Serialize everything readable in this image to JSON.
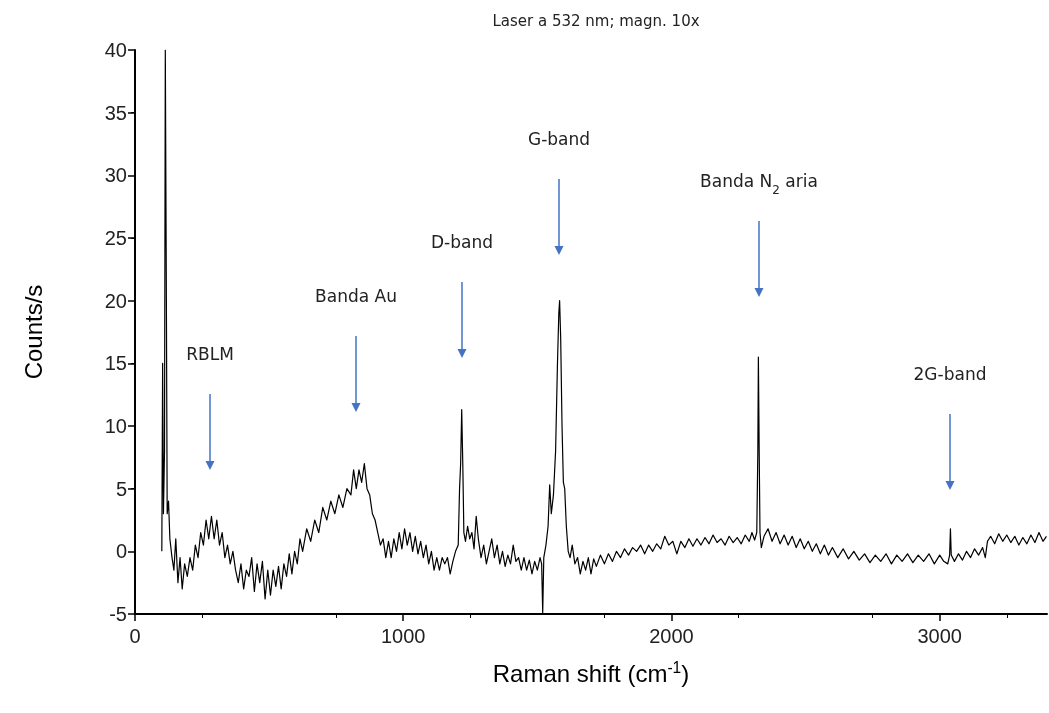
{
  "chart_data": {
    "type": "line",
    "title": "Laser a 532 nm; magn. 10x",
    "xlabel": "Raman shift (cm$^{-1}$)",
    "ylabel": "Counts/s",
    "annotations": [
      "RBLM",
      "Banda Au",
      "D-band",
      "G-band",
      "Banda N$_{2}$ aria",
      "2G-band"
    ],
    "x": [
      100,
      103,
      106,
      110,
      113,
      117,
      120,
      125,
      130,
      138,
      145,
      152,
      160,
      168,
      176,
      185,
      195,
      205,
      215,
      225,
      235,
      245,
      255,
      265,
      275,
      285,
      295,
      305,
      315,
      325,
      335,
      345,
      355,
      365,
      375,
      385,
      395,
      405,
      415,
      425,
      435,
      445,
      455,
      465,
      475,
      485,
      495,
      505,
      515,
      525,
      535,
      545,
      555,
      565,
      575,
      585,
      595,
      605,
      615,
      625,
      640,
      655,
      670,
      685,
      700,
      715,
      730,
      745,
      760,
      775,
      790,
      805,
      815,
      825,
      835,
      845,
      855,
      865,
      875,
      885,
      895,
      905,
      915,
      925,
      935,
      945,
      955,
      965,
      975,
      985,
      995,
      1005,
      1015,
      1025,
      1035,
      1045,
      1055,
      1065,
      1075,
      1085,
      1095,
      1105,
      1115,
      1125,
      1135,
      1145,
      1155,
      1165,
      1175,
      1185,
      1195,
      1205,
      1210,
      1214,
      1218,
      1222,
      1226,
      1232,
      1240,
      1248,
      1256,
      1264,
      1272,
      1280,
      1290,
      1300,
      1310,
      1320,
      1330,
      1340,
      1350,
      1360,
      1370,
      1380,
      1390,
      1400,
      1410,
      1420,
      1430,
      1440,
      1450,
      1460,
      1470,
      1480,
      1490,
      1500,
      1510,
      1516,
      1520,
      1524,
      1532,
      1540,
      1546,
      1552,
      1560,
      1568,
      1575,
      1580,
      1583,
      1587,
      1592,
      1597,
      1602,
      1608,
      1615,
      1622,
      1630,
      1640,
      1650,
      1660,
      1670,
      1680,
      1690,
      1700,
      1710,
      1720,
      1735,
      1750,
      1765,
      1780,
      1795,
      1810,
      1825,
      1840,
      1855,
      1870,
      1885,
      1900,
      1915,
      1930,
      1945,
      1960,
      1975,
      1990,
      2005,
      2020,
      2035,
      2050,
      2065,
      2080,
      2095,
      2110,
      2125,
      2140,
      2155,
      2170,
      2185,
      2200,
      2215,
      2230,
      2245,
      2260,
      2275,
      2290,
      2300,
      2310,
      2318,
      2322,
      2324,
      2327,
      2330,
      2335,
      2345,
      2360,
      2375,
      2390,
      2405,
      2420,
      2435,
      2450,
      2465,
      2480,
      2495,
      2510,
      2525,
      2540,
      2555,
      2570,
      2585,
      2600,
      2620,
      2640,
      2660,
      2680,
      2700,
      2720,
      2740,
      2760,
      2780,
      2800,
      2820,
      2840,
      2860,
      2880,
      2900,
      2920,
      2940,
      2960,
      2980,
      3000,
      3015,
      3030,
      3037,
      3040,
      3043,
      3055,
      3070,
      3085,
      3100,
      3115,
      3130,
      3145,
      3160,
      3170,
      3178,
      3190,
      3205,
      3220,
      3235,
      3250,
      3265,
      3280,
      3295,
      3310,
      3325,
      3340,
      3355,
      3370,
      3385,
      3398
    ],
    "values": [
      0,
      15,
      3,
      8,
      40,
      20,
      3,
      4,
      1,
      -0.5,
      -1.5,
      1,
      -2.5,
      -0.5,
      -3,
      -1,
      -2,
      -0.5,
      -1.5,
      0.5,
      -0.5,
      1.5,
      0.5,
      2.5,
      1,
      2.8,
      1,
      2.5,
      0.5,
      1.5,
      -0.5,
      0.5,
      -1,
      0,
      -1.5,
      -2.5,
      -1,
      -3,
      -1.5,
      -2,
      -0.5,
      -3.2,
      -1,
      -2.5,
      -0.8,
      -3.8,
      -1.5,
      -3.5,
      -1.5,
      -2.8,
      -1.2,
      -3,
      -1,
      -2,
      -0.2,
      -1.8,
      0,
      -1,
      1,
      0,
      1.8,
      0.8,
      2.5,
      1.5,
      3.5,
      2.5,
      4,
      3,
      4.5,
      3.5,
      5,
      4.5,
      6.5,
      5,
      6.5,
      5.5,
      7,
      5,
      4.5,
      3,
      2.5,
      1.5,
      0.5,
      1,
      -0.5,
      0.8,
      -0.5,
      1,
      0,
      1.5,
      0.2,
      1.8,
      0.5,
      1.5,
      0,
      1.2,
      -0.2,
      0.8,
      -0.5,
      0.5,
      -1,
      0,
      -1.5,
      -0.5,
      -1.5,
      -0.5,
      -1,
      -0.5,
      -1.8,
      -0.8,
      0,
      0.5,
      5,
      7,
      11.3,
      7,
      1.5,
      0.8,
      2,
      1,
      1.5,
      0.2,
      2.8,
      1,
      -0.5,
      0.5,
      -1,
      0,
      1,
      -0.5,
      0.5,
      -1,
      0,
      -1.2,
      -0.3,
      -1,
      0.5,
      -0.8,
      -0.5,
      -1.5,
      -0.5,
      -1.5,
      -0.7,
      -1.8,
      -0.8,
      -1.5,
      -0.5,
      -1,
      -4.9,
      -0.5,
      0.5,
      2,
      5.3,
      3,
      4.5,
      8,
      15,
      19,
      20,
      17,
      10,
      5.5,
      5,
      2,
      0,
      -0.5,
      0.5,
      -1,
      -0.5,
      -1.8,
      -0.8,
      -1.5,
      -0.5,
      -1.8,
      -0.6,
      -1.2,
      -0.3,
      -1,
      -0.2,
      -0.8,
      0,
      -0.5,
      0.2,
      -0.3,
      0.3,
      0,
      0.5,
      -0.2,
      0.5,
      0,
      0.6,
      0.2,
      1.2,
      0.5,
      0.8,
      -0.2,
      0.8,
      0.3,
      1,
      0.4,
      1,
      0.5,
      1.1,
      0.6,
      1.3,
      0.7,
      1,
      0.5,
      1.2,
      0.7,
      1.1,
      0.6,
      1.3,
      0.8,
      1.5,
      0.9,
      1.5,
      8,
      15.5,
      8,
      1.5,
      0.3,
      1.2,
      1.8,
      0.8,
      1.5,
      0.6,
      1.3,
      0.5,
      1.2,
      0.3,
      1,
      0.2,
      0.8,
      0,
      0.6,
      -0.2,
      0.5,
      -0.3,
      0.3,
      -0.5,
      0.2,
      -0.6,
      0,
      -0.7,
      -0.2,
      -0.9,
      -0.3,
      -0.8,
      -0.2,
      -1,
      -0.3,
      -0.8,
      -0.2,
      -0.9,
      -0.3,
      -0.8,
      -0.2,
      -1,
      -0.3,
      -0.8,
      -1,
      -0.3,
      1.8,
      -0.3,
      -0.8,
      -0.2,
      -0.7,
      0,
      -0.5,
      0.2,
      -0.3,
      0.3,
      -0.5,
      0.8,
      1.2,
      0.6,
      1.4,
      0.8,
      1.3,
      0.7,
      1.2,
      0.5,
      1.1,
      0.6,
      1.3,
      0.7,
      1.5,
      0.8,
      1.2
    ],
    "color": "#000000",
    "marker": "none",
    "grid": false,
    "xlim": [
      0,
      3400
    ],
    "xticks": [
      0,
      1000,
      2000,
      3000
    ],
    "ylim": [
      -5,
      40
    ],
    "yticks": [
      -5,
      0,
      5,
      10,
      15,
      20,
      25,
      30,
      35,
      40
    ]
  }
}
